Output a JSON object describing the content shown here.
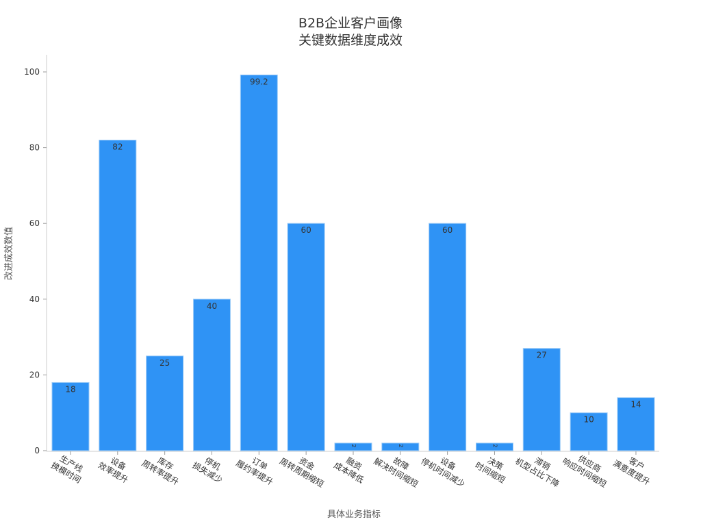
{
  "chart_data": {
    "type": "bar",
    "title": [
      "B2B企业客户画像",
      "关键数据维度成效"
    ],
    "xlabel": "具体业务指标",
    "ylabel": "改进成效数值",
    "ylim": [
      0,
      100
    ],
    "yticks": [
      0,
      20,
      40,
      60,
      80,
      100
    ],
    "grid": false,
    "bar_color": "#2f93f5",
    "categories": [
      [
        "生产线",
        "换模时间"
      ],
      [
        "设备",
        "效率提升"
      ],
      [
        "库存",
        "周转率提升"
      ],
      [
        "停机",
        "损失减少"
      ],
      [
        "订单",
        "履约率提升"
      ],
      [
        "资金",
        "周转周期缩短"
      ],
      [
        "融资",
        "成本降低"
      ],
      [
        "故障",
        "解决时间缩短"
      ],
      [
        "设备",
        "停机时间减少"
      ],
      [
        "决策",
        "时间缩短"
      ],
      [
        "滞销",
        "机型占比下降"
      ],
      [
        "供应商",
        "响应时间缩短"
      ],
      [
        "客户",
        "满意度提升"
      ]
    ],
    "values": [
      18,
      82,
      25,
      40,
      99.2,
      60,
      2,
      2,
      60,
      2,
      27,
      10,
      14
    ],
    "data_labels": [
      "18",
      "82",
      "25",
      "40",
      "99.2",
      "60",
      "2",
      "2",
      "60",
      "2",
      "27",
      "10",
      "14"
    ]
  }
}
